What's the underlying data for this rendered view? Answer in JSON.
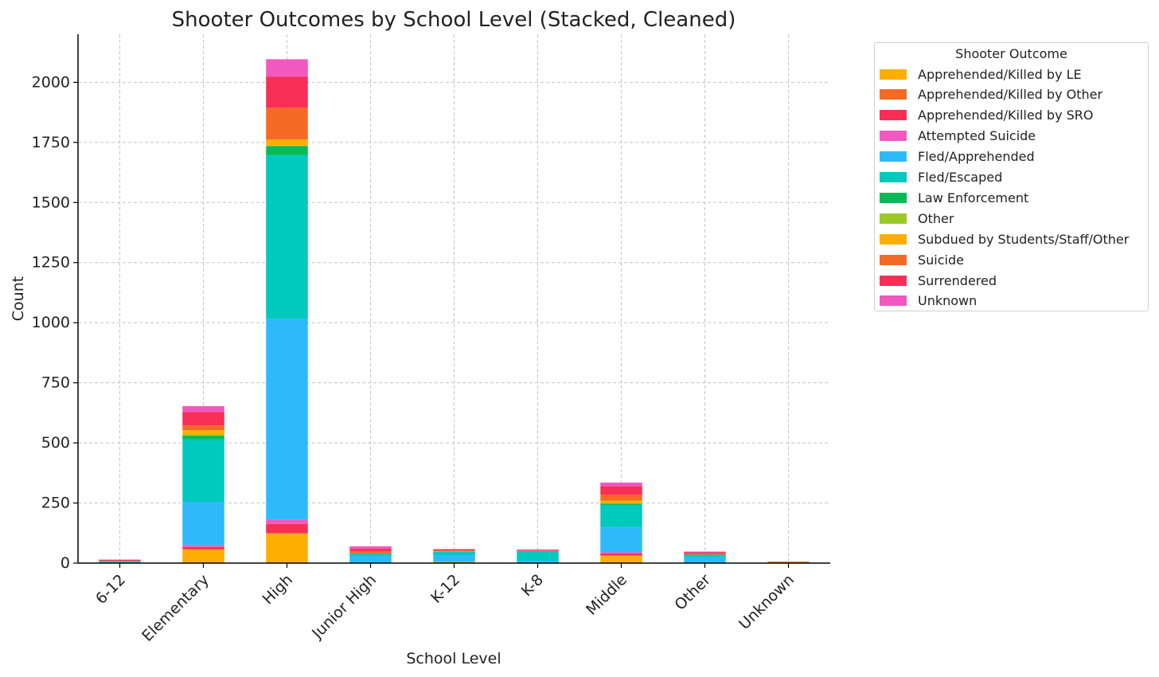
{
  "chart_data": {
    "type": "bar",
    "stacked": true,
    "title": "Shooter Outcomes by School Level (Stacked, Cleaned)",
    "xlabel": "School Level",
    "ylabel": "Count",
    "ylim": [
      0,
      2200
    ],
    "yticks": [
      0,
      250,
      500,
      750,
      1000,
      1250,
      1500,
      1750,
      2000
    ],
    "grid": true,
    "legend_title": "Shooter Outcome",
    "legend_position": "outside-upper-right",
    "categories": [
      "6-12",
      "Elementary",
      "High",
      "Junior High",
      "K-12",
      "K-8",
      "Middle",
      "Other",
      "Unknown"
    ],
    "series": [
      {
        "name": "Apprehended/Killed by LE",
        "color": "#FFAE00",
        "values": [
          0,
          55,
          122,
          0,
          5,
          0,
          30,
          0,
          0
        ]
      },
      {
        "name": "Apprehended/Killed by Other",
        "color": "#F46A25",
        "values": [
          0,
          4,
          3,
          0,
          0,
          0,
          2,
          0,
          0
        ]
      },
      {
        "name": "Apprehended/Killed by SRO",
        "color": "#F72F57",
        "values": [
          0,
          8,
          38,
          0,
          0,
          0,
          8,
          0,
          0
        ]
      },
      {
        "name": "Attempted Suicide",
        "color": "#F258C0",
        "values": [
          0,
          8,
          18,
          0,
          0,
          0,
          5,
          0,
          0
        ]
      },
      {
        "name": "Fled/Apprehended",
        "color": "#2EBAFA",
        "values": [
          4,
          180,
          836,
          30,
          28,
          10,
          105,
          25,
          0
        ]
      },
      {
        "name": "Fled/Escaped",
        "color": "#00C9BD",
        "values": [
          4,
          260,
          680,
          10,
          15,
          40,
          92,
          10,
          0
        ]
      },
      {
        "name": "Law Enforcement",
        "color": "#06BA57",
        "values": [
          0,
          15,
          38,
          0,
          0,
          0,
          5,
          0,
          0
        ]
      },
      {
        "name": "Other",
        "color": "#9BC926",
        "values": [
          0,
          5,
          2,
          0,
          0,
          0,
          3,
          0,
          0
        ]
      },
      {
        "name": "Subdued by Students/Staff/Other",
        "color": "#FFAE00",
        "values": [
          0,
          18,
          25,
          0,
          2,
          0,
          10,
          0,
          0
        ]
      },
      {
        "name": "Suicide",
        "color": "#F46A25",
        "values": [
          2,
          20,
          132,
          10,
          3,
          2,
          25,
          5,
          6
        ]
      },
      {
        "name": "Surrendered",
        "color": "#F72F57",
        "values": [
          4,
          55,
          130,
          10,
          5,
          3,
          35,
          5,
          0
        ]
      },
      {
        "name": "Unknown",
        "color": "#F258C0",
        "values": [
          1,
          25,
          72,
          10,
          0,
          2,
          15,
          3,
          0
        ]
      }
    ]
  }
}
